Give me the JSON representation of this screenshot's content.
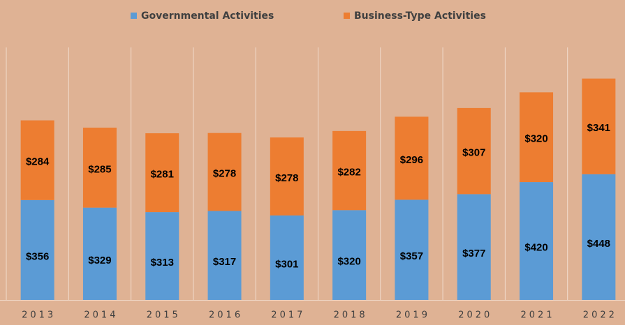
{
  "chart_data": {
    "type": "stacked_bar",
    "categories": [
      "2013",
      "2014",
      "2015",
      "2016",
      "2017",
      "2018",
      "2019",
      "2020",
      "2021",
      "2022"
    ],
    "series": [
      {
        "name": "Governmental Activities",
        "color": "#5b9bd5",
        "values": [
          356,
          329,
          313,
          317,
          301,
          320,
          357,
          377,
          420,
          448
        ],
        "value_labels": [
          "$356",
          "$329",
          "$313",
          "$317",
          "$301",
          "$320",
          "$357",
          "$377",
          "$420",
          "$448"
        ]
      },
      {
        "name": "Business-Type Activities",
        "color": "#ed7d31",
        "values": [
          284,
          285,
          281,
          278,
          278,
          282,
          296,
          307,
          320,
          341
        ],
        "value_labels": [
          "$284",
          "$285",
          "$281",
          "$278",
          "$278",
          "$282",
          "$296",
          "$307",
          "$320",
          "$341"
        ]
      }
    ],
    "ylim": [
      0,
      900
    ],
    "legend": "top"
  }
}
